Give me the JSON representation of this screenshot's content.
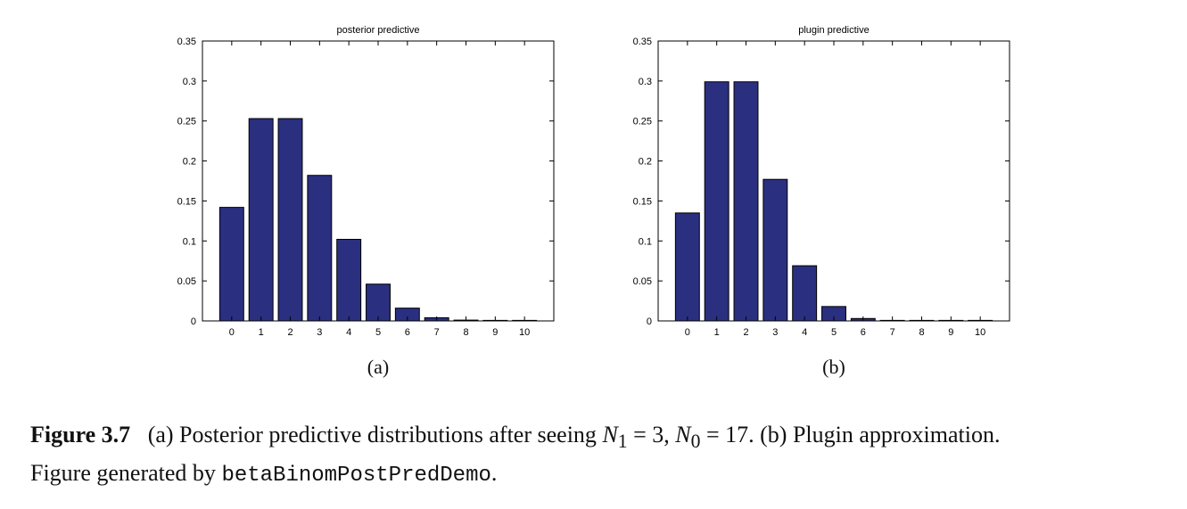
{
  "chart_data": [
    {
      "type": "bar",
      "title": "posterior predictive",
      "panel_label": "(a)",
      "categories": [
        "0",
        "1",
        "2",
        "3",
        "4",
        "5",
        "6",
        "7",
        "8",
        "9",
        "10"
      ],
      "values": [
        0.142,
        0.253,
        0.253,
        0.182,
        0.102,
        0.046,
        0.016,
        0.004,
        0.001,
        0.0004,
        0.0001
      ],
      "ylim": [
        0,
        0.35
      ],
      "yticks": [
        "0",
        "0.05",
        "0.1",
        "0.15",
        "0.2",
        "0.25",
        "0.3",
        "0.35"
      ],
      "xlabel": "",
      "ylabel": "",
      "bar_color": "#2b2f80",
      "grid": false
    },
    {
      "type": "bar",
      "title": "plugin predictive",
      "panel_label": "(b)",
      "categories": [
        "0",
        "1",
        "2",
        "3",
        "4",
        "5",
        "6",
        "7",
        "8",
        "9",
        "10"
      ],
      "values": [
        0.135,
        0.299,
        0.299,
        0.177,
        0.069,
        0.018,
        0.003,
        0.0006,
        0.0003,
        0.0002,
        0.0001
      ],
      "ylim": [
        0,
        0.35
      ],
      "yticks": [
        "0",
        "0.05",
        "0.1",
        "0.15",
        "0.2",
        "0.25",
        "0.3",
        "0.35"
      ],
      "xlabel": "",
      "ylabel": "",
      "bar_color": "#2b2f80",
      "grid": false
    }
  ],
  "caption": {
    "label": "Figure 3.7",
    "part1": "(a) Posterior predictive distributions after seeing ",
    "n1_sym": "N",
    "n1_sub": "1",
    "n1_eq": " = 3, ",
    "n0_sym": "N",
    "n0_sub": "0",
    "n0_eq": " = 17.",
    "part2": " (b) Plugin approximation.",
    "line2_prefix": "Figure generated by ",
    "code_name": "betaBinomPostPredDemo",
    "line2_suffix": "."
  }
}
